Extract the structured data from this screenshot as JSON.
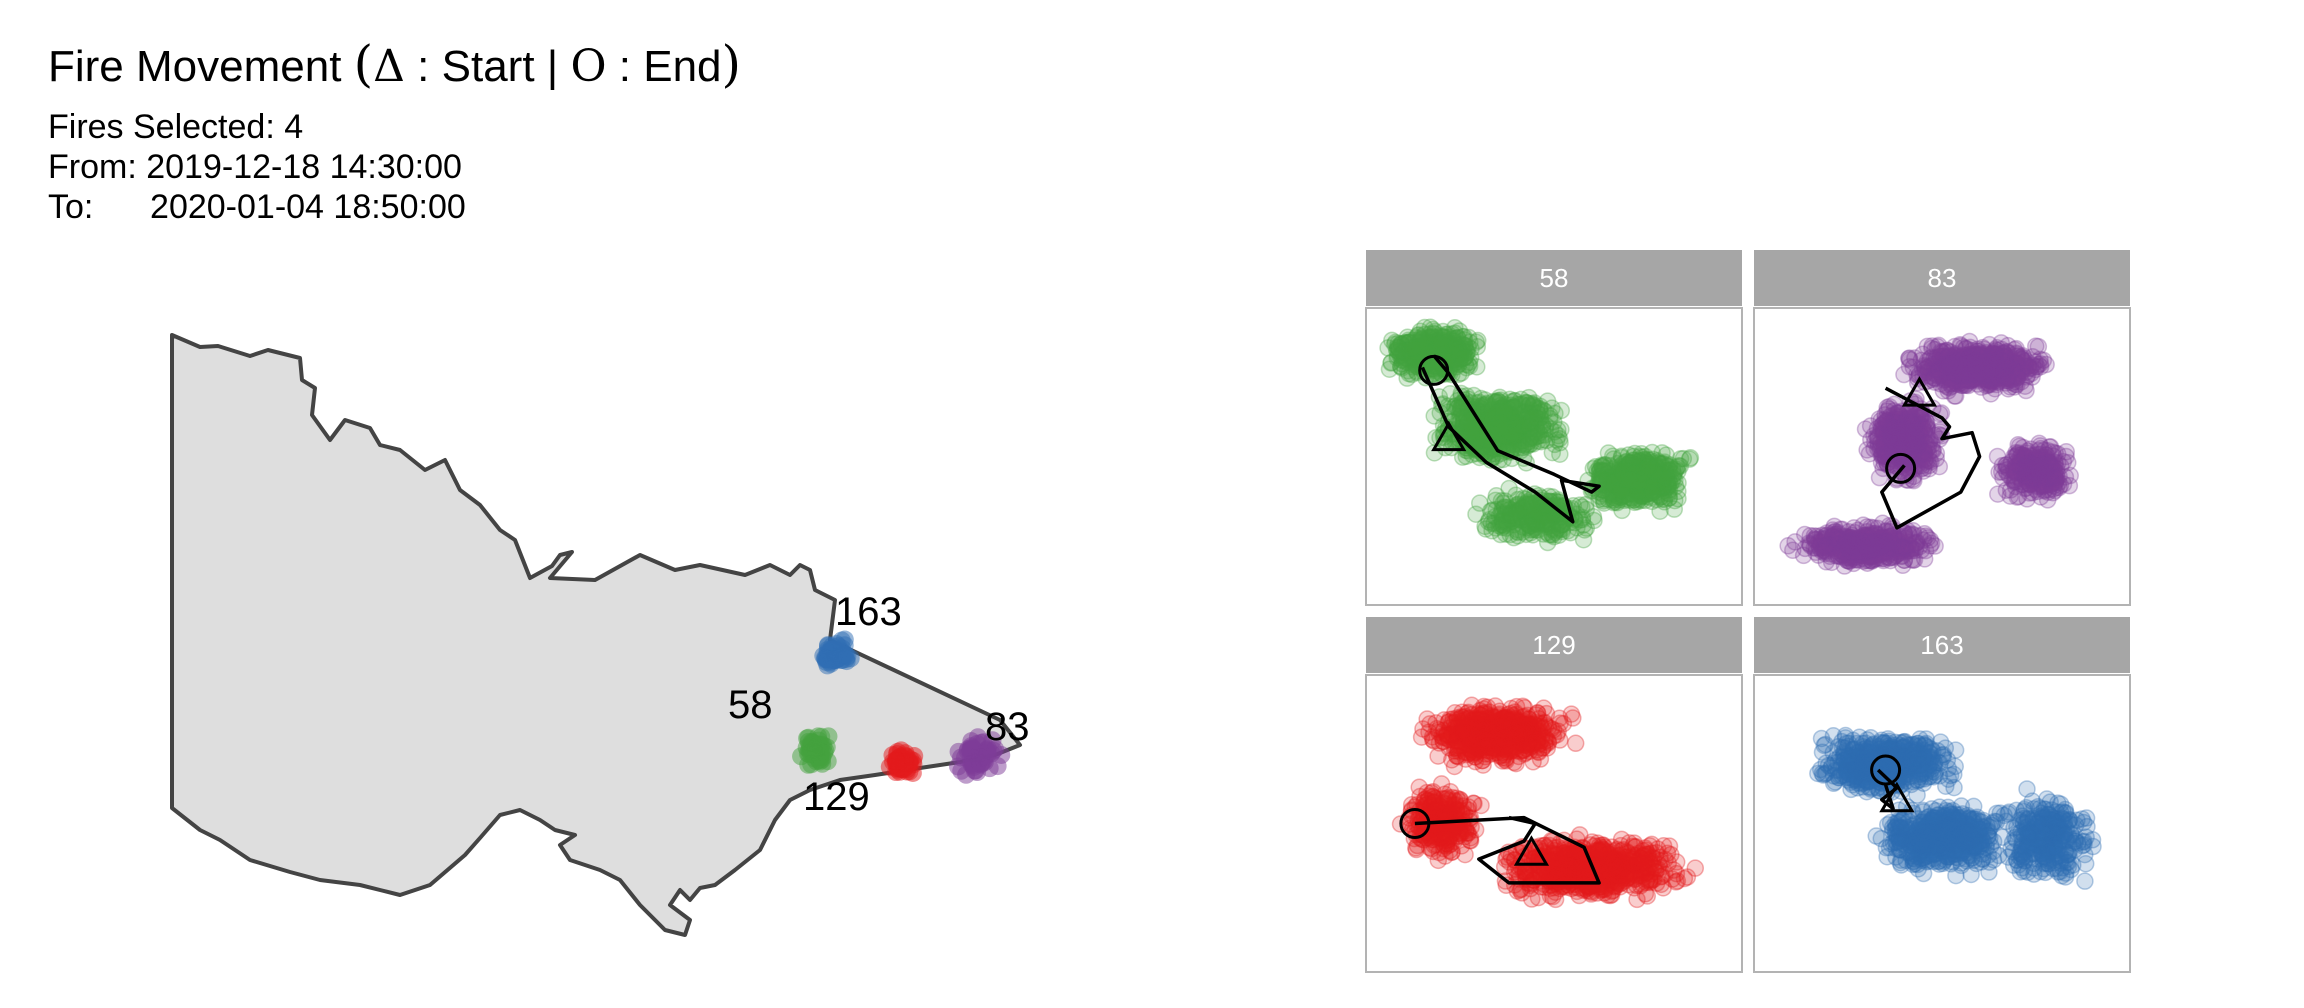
{
  "title": {
    "text": "Fire Movement",
    "start_symbol": "Δ",
    "start_label": "Start",
    "separator": "|",
    "end_symbol": "O",
    "end_label": "End"
  },
  "info": {
    "fires_selected_label": "Fires Selected:",
    "fires_selected_value": "4",
    "from_label": "From:",
    "from_value": "2019-12-18 14:30:00",
    "to_label": "To:",
    "to_value": "2020-01-04 18:50:00"
  },
  "colors": {
    "58": "#43A23E",
    "83": "#7E3B98",
    "129": "#E31A1C",
    "163": "#2F6DB3",
    "map_fill": "#dedede",
    "map_stroke": "#444444",
    "strip_fill": "#a6a6a6",
    "strip_text": "#ffffff",
    "panel_border": "#b3b3b3",
    "path": "#000000"
  },
  "chart_data": [
    {
      "type": "scatter",
      "name": "state-map",
      "xlabel": "",
      "ylabel": "",
      "grid": false,
      "fires": [
        {
          "id": "58",
          "label": "58"
        },
        {
          "id": "83",
          "label": "83"
        },
        {
          "id": "129",
          "label": "129"
        },
        {
          "id": "163",
          "label": "163"
        }
      ]
    },
    {
      "type": "scatter",
      "name": "fire-movement-facets",
      "xlabel": "",
      "ylabel": "",
      "grid": false,
      "panels": [
        {
          "id": "58",
          "strip_label": "58",
          "path": [
            [
              0.15,
              0.2
            ],
            [
              0.22,
              0.4
            ],
            [
              0.32,
              0.52
            ],
            [
              0.45,
              0.62
            ],
            [
              0.55,
              0.72
            ],
            [
              0.52,
              0.58
            ],
            [
              0.62,
              0.6
            ],
            [
              0.6,
              0.62
            ],
            [
              0.5,
              0.56
            ],
            [
              0.35,
              0.48
            ],
            [
              0.22,
              0.22
            ],
            [
              0.18,
              0.16
            ]
          ],
          "start": [
            0.22,
            0.44
          ],
          "end": [
            0.18,
            0.21
          ]
        },
        {
          "id": "83",
          "strip_label": "83",
          "path": [
            [
              0.35,
              0.27
            ],
            [
              0.5,
              0.37
            ],
            [
              0.52,
              0.4
            ],
            [
              0.5,
              0.44
            ],
            [
              0.58,
              0.42
            ],
            [
              0.6,
              0.5
            ],
            [
              0.55,
              0.62
            ],
            [
              0.38,
              0.74
            ],
            [
              0.34,
              0.62
            ],
            [
              0.4,
              0.53
            ]
          ],
          "start": [
            0.44,
            0.29
          ],
          "end": [
            0.39,
            0.54
          ]
        },
        {
          "id": "129",
          "strip_label": "129",
          "path": [
            [
              0.13,
              0.5
            ],
            [
              0.42,
              0.48
            ],
            [
              0.58,
              0.58
            ],
            [
              0.62,
              0.7
            ],
            [
              0.38,
              0.7
            ],
            [
              0.3,
              0.62
            ],
            [
              0.42,
              0.56
            ],
            [
              0.45,
              0.5
            ],
            [
              0.38,
              0.48
            ]
          ],
          "start": [
            0.44,
            0.6
          ],
          "end": [
            0.13,
            0.5
          ]
        },
        {
          "id": "163",
          "strip_label": "163",
          "path": [
            [
              0.33,
              0.32
            ],
            [
              0.38,
              0.38
            ],
            [
              0.34,
              0.42
            ],
            [
              0.37,
              0.45
            ],
            [
              0.35,
              0.37
            ]
          ],
          "start": [
            0.38,
            0.42
          ],
          "end": [
            0.35,
            0.32
          ]
        }
      ]
    }
  ]
}
